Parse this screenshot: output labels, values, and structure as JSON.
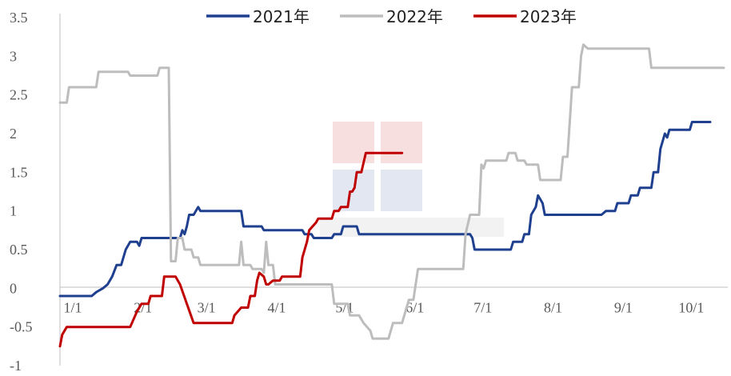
{
  "chart_data": {
    "type": "line",
    "title": "",
    "xlabel": "",
    "ylabel": "",
    "ylim": [
      -1,
      3.5
    ],
    "y_ticks": [
      "-1",
      "-0.5",
      "0",
      "0.5",
      "1",
      "1.5",
      "2",
      "2.5",
      "3",
      "3.5"
    ],
    "x_range": [
      1,
      294
    ],
    "x_ticks": [
      {
        "label": "1/1",
        "day": 1
      },
      {
        "label": "2/1",
        "day": 32
      },
      {
        "label": "3/1",
        "day": 60
      },
      {
        "label": "4/1",
        "day": 91
      },
      {
        "label": "5/1",
        "day": 121
      },
      {
        "label": "6/1",
        "day": 152
      },
      {
        "label": "7/1",
        "day": 182
      },
      {
        "label": "8/1",
        "day": 213
      },
      {
        "label": "9/1",
        "day": 244
      },
      {
        "label": "10/1",
        "day": 274
      }
    ],
    "grid": false,
    "legend_position": "top",
    "series": [
      {
        "name": "2021年",
        "color": "#1f3f8f",
        "points": [
          [
            1,
            -0.1
          ],
          [
            15,
            -0.1
          ],
          [
            17,
            -0.05
          ],
          [
            20,
            0
          ],
          [
            22,
            0.05
          ],
          [
            24,
            0.15
          ],
          [
            26,
            0.3
          ],
          [
            28,
            0.3
          ],
          [
            30,
            0.5
          ],
          [
            32,
            0.6
          ],
          [
            35,
            0.6
          ],
          [
            36,
            0.55
          ],
          [
            37,
            0.65
          ],
          [
            52,
            0.65
          ],
          [
            54,
            0.65
          ],
          [
            55,
            0.75
          ],
          [
            56,
            0.7
          ],
          [
            57,
            0.8
          ],
          [
            58,
            0.95
          ],
          [
            60,
            0.95
          ],
          [
            62,
            1.05
          ],
          [
            63,
            1.0
          ],
          [
            81,
            1.0
          ],
          [
            82,
            0.8
          ],
          [
            90,
            0.8
          ],
          [
            91,
            0.75
          ],
          [
            108,
            0.75
          ],
          [
            109,
            0.7
          ],
          [
            112,
            0.7
          ],
          [
            113,
            0.65
          ],
          [
            121,
            0.65
          ],
          [
            122,
            0.7
          ],
          [
            125,
            0.7
          ],
          [
            126,
            0.8
          ],
          [
            132,
            0.8
          ],
          [
            133,
            0.7
          ],
          [
            182,
            0.7
          ],
          [
            183,
            0.65
          ],
          [
            184,
            0.5
          ],
          [
            200,
            0.5
          ],
          [
            201,
            0.6
          ],
          [
            205,
            0.6
          ],
          [
            206,
            0.7
          ],
          [
            208,
            0.7
          ],
          [
            209,
            0.95
          ],
          [
            211,
            1.05
          ],
          [
            212,
            1.2
          ],
          [
            214,
            1.1
          ],
          [
            215,
            0.95
          ],
          [
            240,
            0.95
          ],
          [
            242,
            1.0
          ],
          [
            246,
            1.0
          ],
          [
            247,
            1.1
          ],
          [
            252,
            1.1
          ],
          [
            253,
            1.2
          ],
          [
            256,
            1.2
          ],
          [
            257,
            1.3
          ],
          [
            262,
            1.3
          ],
          [
            263,
            1.5
          ],
          [
            265,
            1.5
          ],
          [
            266,
            1.8
          ],
          [
            267,
            1.9
          ],
          [
            268,
            2.0
          ],
          [
            269,
            1.95
          ],
          [
            270,
            2.05
          ],
          [
            279,
            2.05
          ],
          [
            280,
            2.15
          ],
          [
            288,
            2.15
          ]
        ]
      },
      {
        "name": "2022年",
        "color": "#bdbdbd",
        "points": [
          [
            1,
            2.4
          ],
          [
            4,
            2.4
          ],
          [
            5,
            2.6
          ],
          [
            17,
            2.6
          ],
          [
            18,
            2.8
          ],
          [
            31,
            2.8
          ],
          [
            32,
            2.75
          ],
          [
            44,
            2.75
          ],
          [
            45,
            2.85
          ],
          [
            49,
            2.85
          ],
          [
            50,
            0.35
          ],
          [
            52,
            0.35
          ],
          [
            53,
            0.65
          ],
          [
            55,
            0.65
          ],
          [
            56,
            0.5
          ],
          [
            59,
            0.5
          ],
          [
            60,
            0.4
          ],
          [
            62,
            0.4
          ],
          [
            63,
            0.3
          ],
          [
            80,
            0.3
          ],
          [
            81,
            0.6
          ],
          [
            82,
            0.3
          ],
          [
            85,
            0.3
          ],
          [
            86,
            0.25
          ],
          [
            90,
            0.25
          ],
          [
            91,
            0.2
          ],
          [
            92,
            0.6
          ],
          [
            93,
            0.3
          ],
          [
            95,
            0.3
          ],
          [
            96,
            0.05
          ],
          [
            121,
            0.05
          ],
          [
            122,
            -0.2
          ],
          [
            128,
            -0.2
          ],
          [
            129,
            -0.35
          ],
          [
            133,
            -0.35
          ],
          [
            135,
            -0.45
          ],
          [
            138,
            -0.55
          ],
          [
            139,
            -0.65
          ],
          [
            146,
            -0.65
          ],
          [
            148,
            -0.45
          ],
          [
            152,
            -0.45
          ],
          [
            155,
            -0.15
          ],
          [
            157,
            -0.15
          ],
          [
            159,
            0.25
          ],
          [
            166,
            0.25
          ],
          [
            179,
            0.25
          ],
          [
            180,
            0.7
          ],
          [
            182,
            0.95
          ],
          [
            186,
            0.95
          ],
          [
            187,
            1.6
          ],
          [
            188,
            1.55
          ],
          [
            189,
            1.65
          ],
          [
            198,
            1.65
          ],
          [
            199,
            1.75
          ],
          [
            202,
            1.75
          ],
          [
            203,
            1.65
          ],
          [
            206,
            1.65
          ],
          [
            207,
            1.6
          ],
          [
            212,
            1.6
          ],
          [
            213,
            1.4
          ],
          [
            222,
            1.4
          ],
          [
            223,
            1.7
          ],
          [
            225,
            1.7
          ],
          [
            226,
            2.15
          ],
          [
            227,
            2.6
          ],
          [
            230,
            2.6
          ],
          [
            231,
            3.0
          ],
          [
            232,
            3.15
          ],
          [
            234,
            3.1
          ],
          [
            261,
            3.1
          ],
          [
            262,
            2.85
          ],
          [
            294,
            2.85
          ]
        ]
      },
      {
        "name": "2023年",
        "color": "#c00000",
        "points": [
          [
            1,
            -0.75
          ],
          [
            2,
            -0.6
          ],
          [
            4,
            -0.5
          ],
          [
            32,
            -0.5
          ],
          [
            35,
            -0.3
          ],
          [
            37,
            -0.2
          ],
          [
            40,
            -0.2
          ],
          [
            41,
            -0.1
          ],
          [
            46,
            -0.1
          ],
          [
            47,
            0.15
          ],
          [
            52,
            0.15
          ],
          [
            54,
            0.05
          ],
          [
            57,
            -0.2
          ],
          [
            60,
            -0.45
          ],
          [
            77,
            -0.45
          ],
          [
            78,
            -0.35
          ],
          [
            81,
            -0.25
          ],
          [
            84,
            -0.25
          ],
          [
            85,
            -0.1
          ],
          [
            87,
            -0.1
          ],
          [
            88,
            0.1
          ],
          [
            89,
            0.2
          ],
          [
            91,
            0.15
          ],
          [
            92,
            0.05
          ],
          [
            93,
            0.05
          ],
          [
            95,
            0.1
          ],
          [
            98,
            0.1
          ],
          [
            99,
            0.15
          ],
          [
            107,
            0.15
          ],
          [
            108,
            0.4
          ],
          [
            110,
            0.6
          ],
          [
            111,
            0.75
          ],
          [
            114,
            0.85
          ],
          [
            115,
            0.9
          ],
          [
            121,
            0.9
          ],
          [
            122,
            1.0
          ],
          [
            124,
            1.0
          ],
          [
            125,
            1.05
          ],
          [
            128,
            1.05
          ],
          [
            129,
            1.25
          ],
          [
            130,
            1.25
          ],
          [
            131,
            1.3
          ],
          [
            132,
            1.5
          ],
          [
            134,
            1.5
          ],
          [
            136,
            1.75
          ],
          [
            152,
            1.75
          ]
        ]
      }
    ]
  }
}
